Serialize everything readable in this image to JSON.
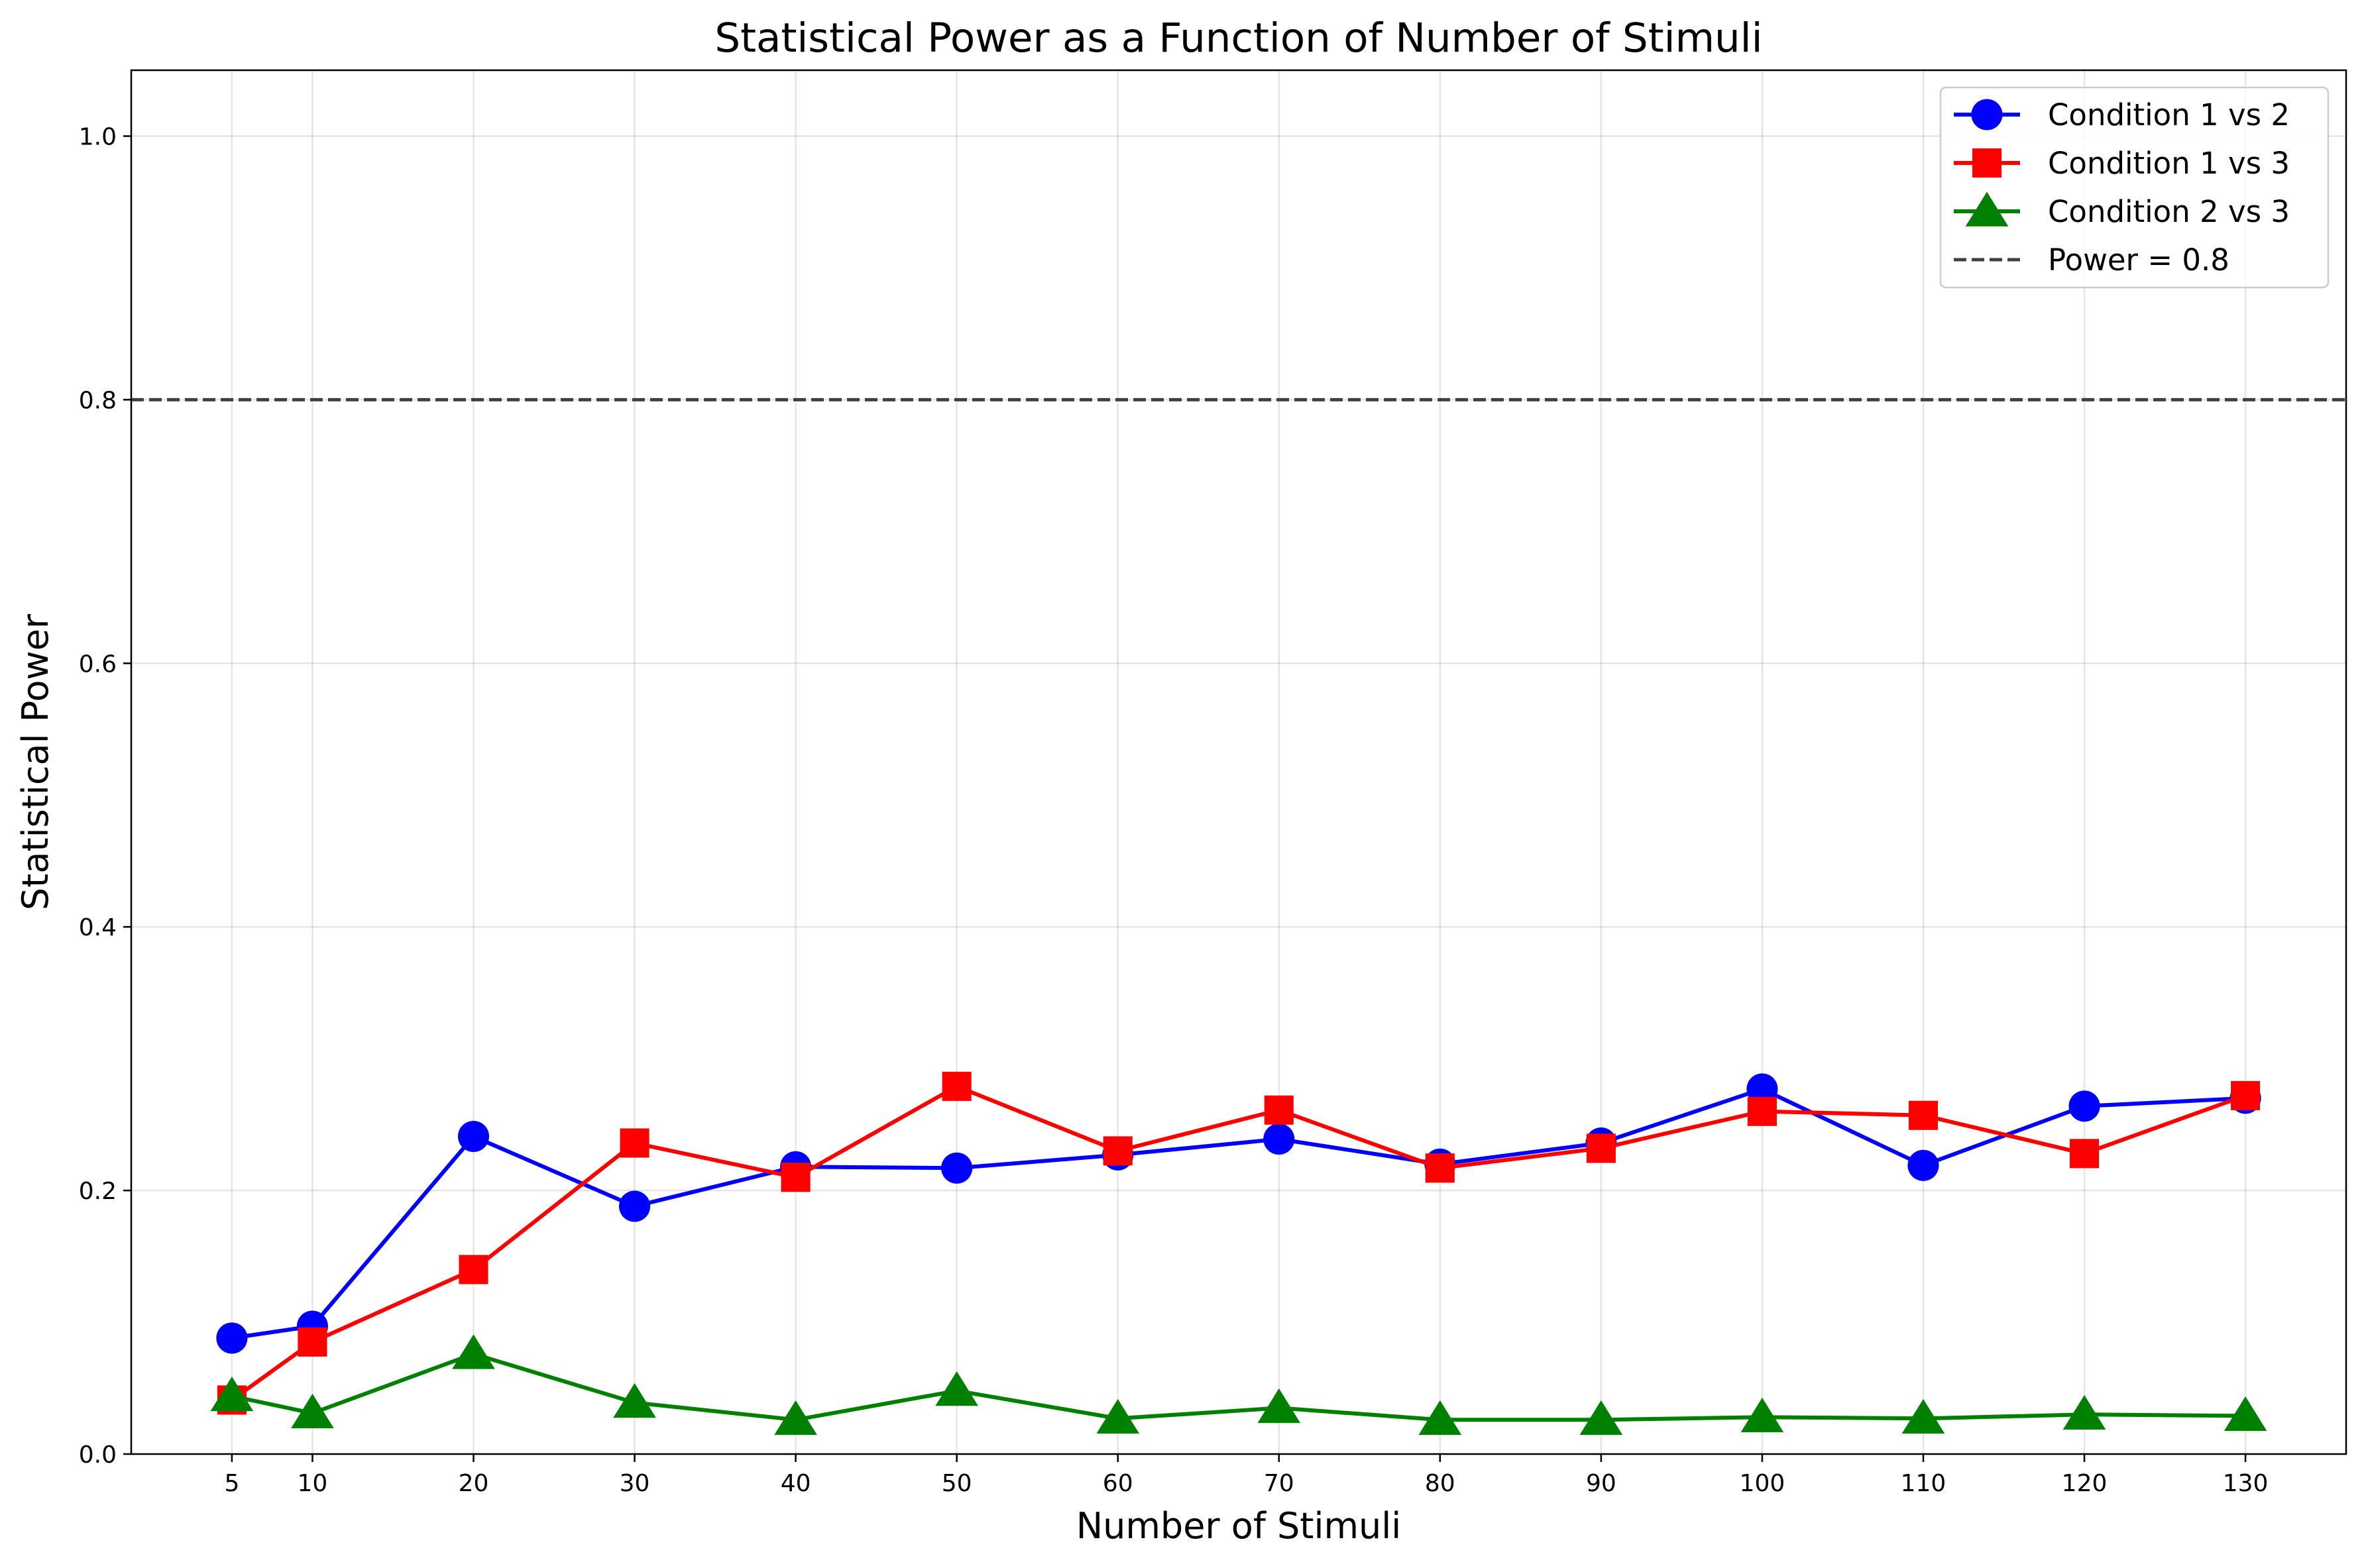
{
  "chart_data": {
    "type": "line",
    "title": "Statistical Power as a Function of Number of Stimuli",
    "xlabel": "Number of Stimuli",
    "ylabel": "Statistical Power",
    "xlim": [
      -1.25,
      136.25
    ],
    "ylim": [
      0.0,
      1.05
    ],
    "x": [
      5,
      10,
      20,
      30,
      40,
      50,
      60,
      70,
      80,
      90,
      100,
      110,
      120,
      130
    ],
    "x_ticks": [
      5,
      10,
      20,
      30,
      40,
      50,
      60,
      70,
      80,
      90,
      100,
      110,
      120,
      130
    ],
    "x_tick_labels": [
      "5",
      "10",
      "20",
      "30",
      "40",
      "50",
      "60",
      "70",
      "80",
      "90",
      "100",
      "110",
      "120",
      "130"
    ],
    "y_ticks": [
      0.0,
      0.2,
      0.4,
      0.6,
      0.8,
      1.0
    ],
    "y_tick_labels": [
      "0.0",
      "0.2",
      "0.4",
      "0.6",
      "0.8",
      "1.0"
    ],
    "grid": true,
    "legend_position": "top-right",
    "series": [
      {
        "name": "Condition 1 vs 2",
        "color": "#0000ff",
        "marker": "circle",
        "values": [
          0.088,
          0.097,
          0.241,
          0.188,
          0.218,
          0.217,
          0.227,
          0.239,
          0.22,
          0.236,
          0.277,
          0.219,
          0.264,
          0.27
        ]
      },
      {
        "name": "Condition 1 vs 3",
        "color": "#ff0000",
        "marker": "square",
        "values": [
          0.041,
          0.085,
          0.14,
          0.236,
          0.21,
          0.279,
          0.23,
          0.261,
          0.217,
          0.232,
          0.26,
          0.257,
          0.228,
          0.272
        ]
      },
      {
        "name": "Condition 2 vs 3",
        "color": "#008000",
        "marker": "triangle",
        "values": [
          0.044,
          0.031,
          0.076,
          0.039,
          0.026,
          0.048,
          0.027,
          0.035,
          0.026,
          0.026,
          0.028,
          0.027,
          0.03,
          0.029
        ]
      }
    ],
    "reference_lines": [
      {
        "name": "Power = 0.8",
        "y": 0.8,
        "color": "#404040",
        "style": "dashed"
      }
    ]
  }
}
